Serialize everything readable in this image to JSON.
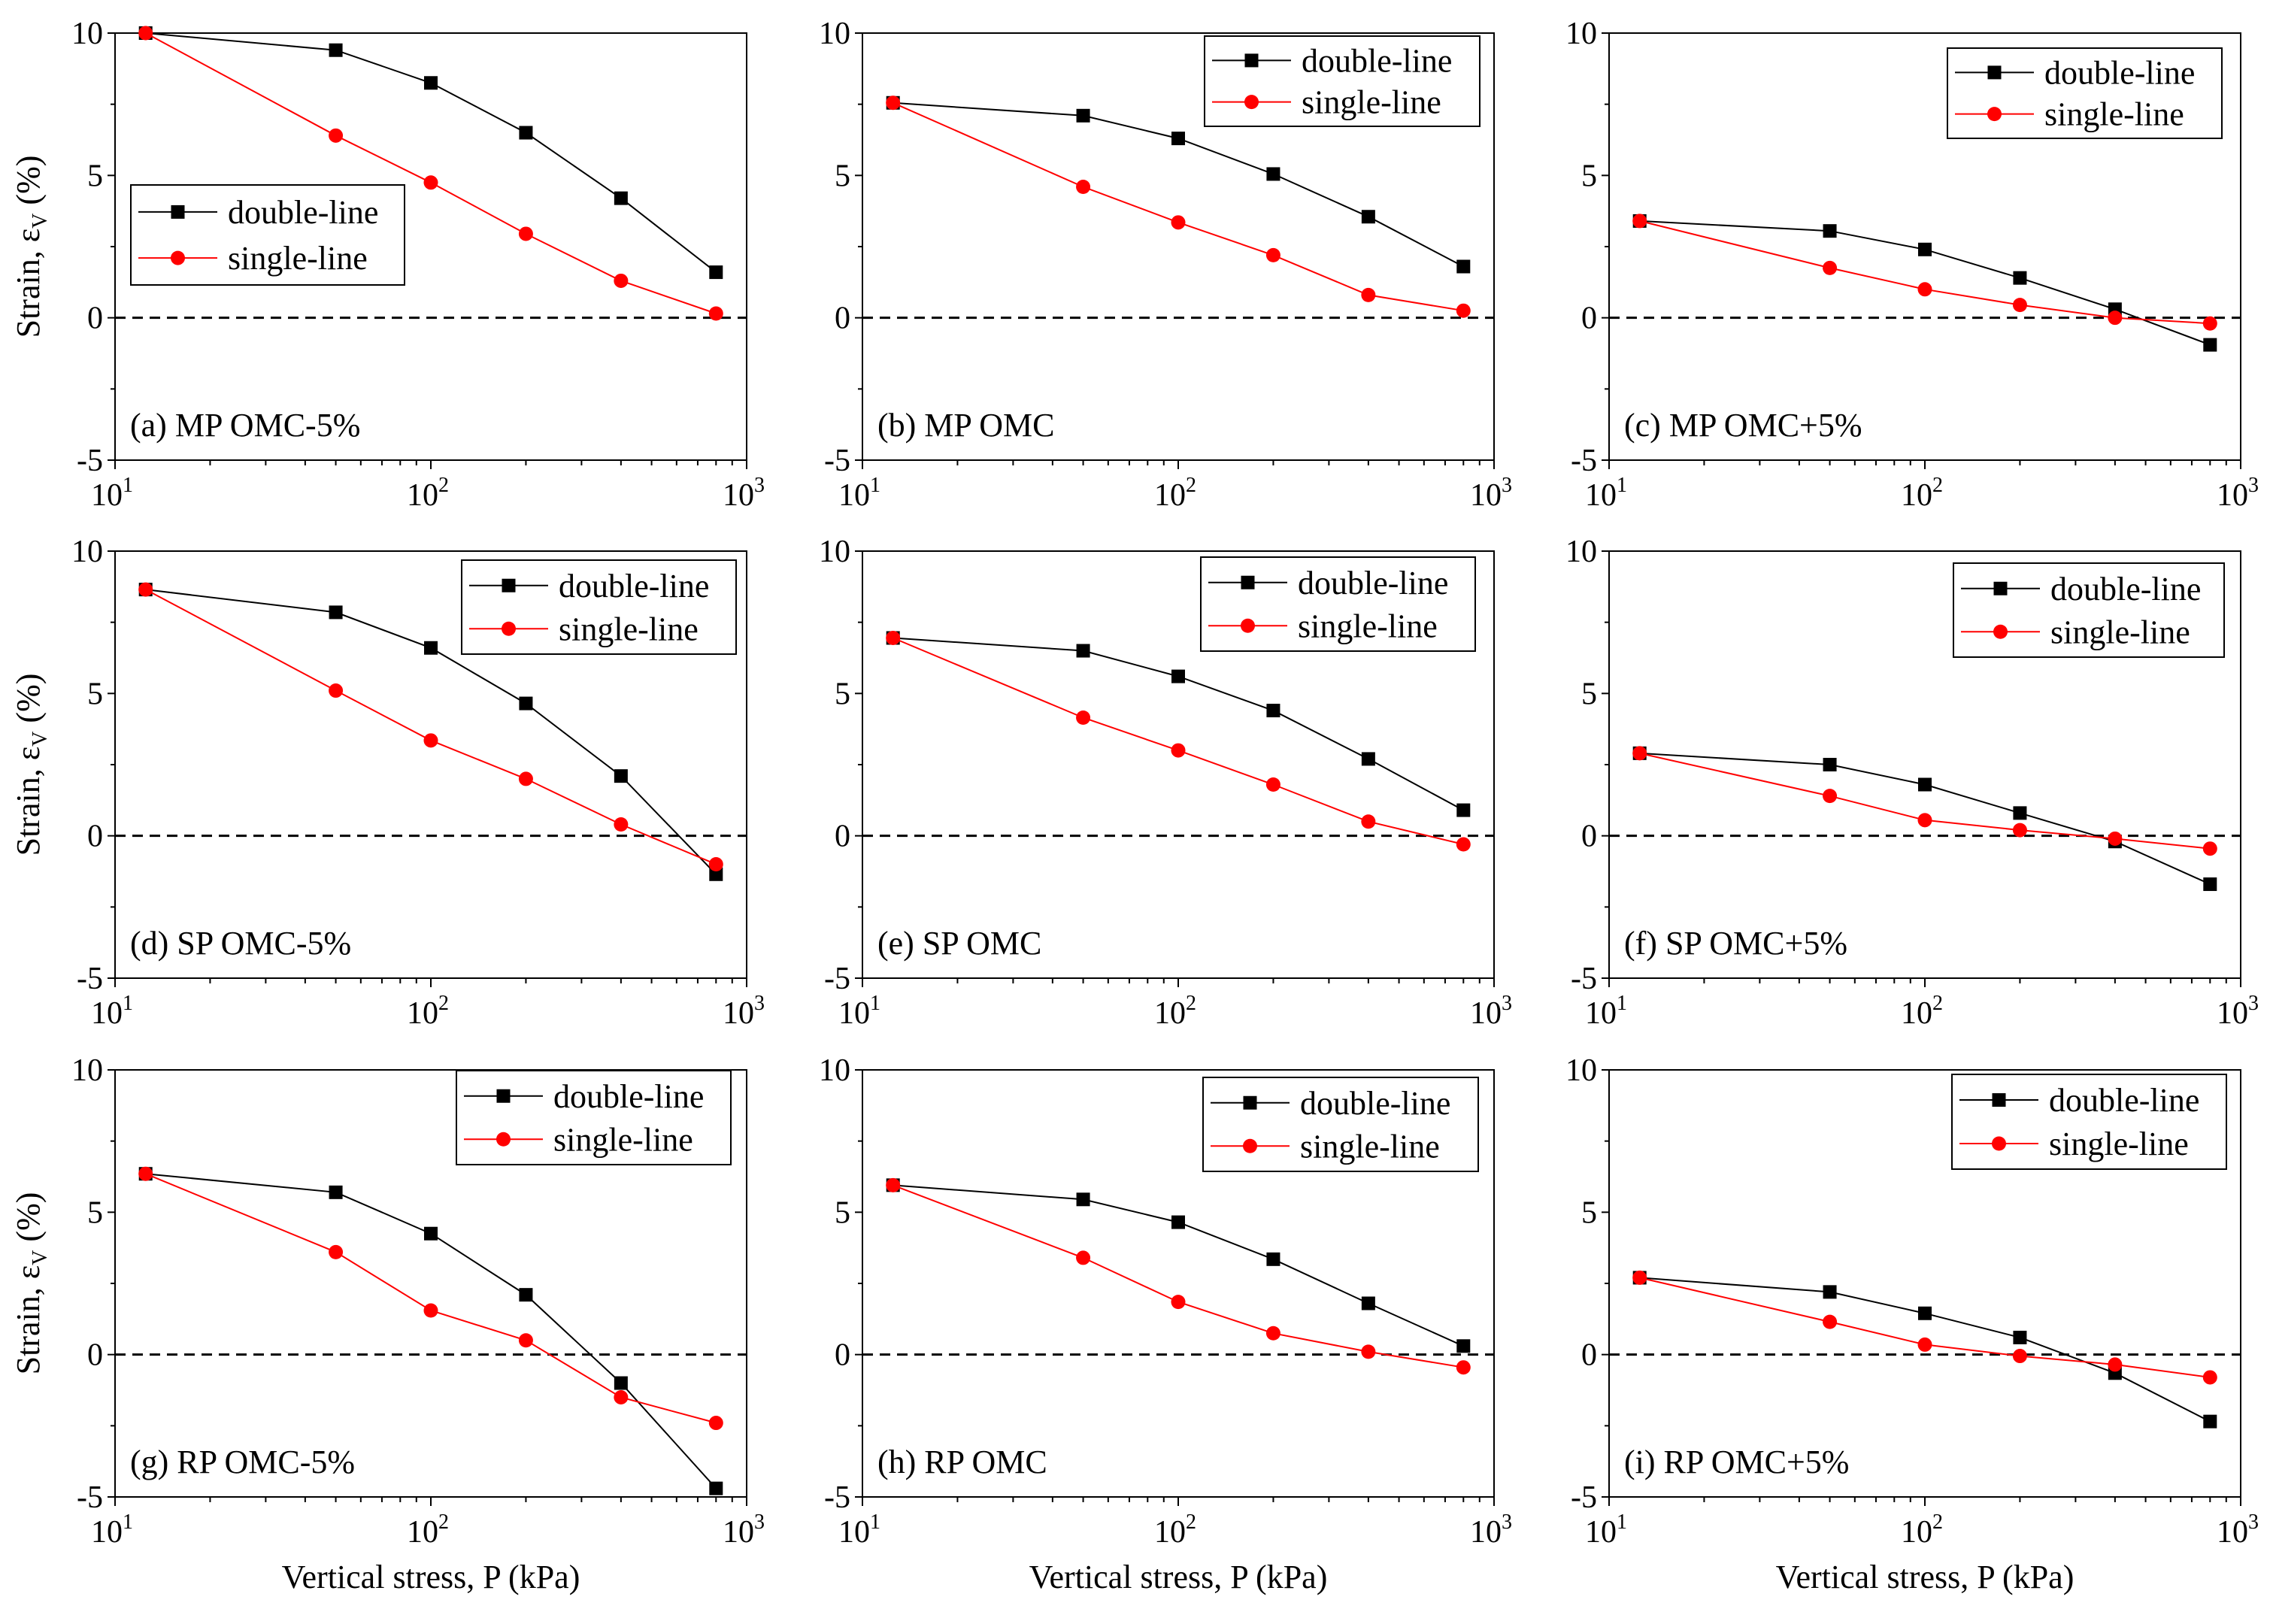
{
  "figure": {
    "xlabel": "Vertical stress, P (kPa)",
    "ylabel_main": "Strain, ε",
    "ylabel_sub": "V",
    "ylabel_suffix": " (%)",
    "x_tick_base": "10",
    "x_tick_exponents": [
      "1",
      "2",
      "3"
    ],
    "y_tick_labels": [
      "-5",
      "0",
      "5",
      "10"
    ],
    "colors": {
      "double": "#000000",
      "single": "#ff0000",
      "zero_line": "#000000"
    }
  },
  "legend": {
    "double_label": "double-line",
    "single_label": "single-line"
  },
  "chart_data": [
    {
      "type": "line",
      "label": "(a) MP OMC-5%",
      "xscale": "log",
      "xlim": [
        10,
        1000
      ],
      "ylim": [
        -5,
        10
      ],
      "x": [
        12.5,
        50,
        100,
        200,
        400,
        800
      ],
      "series": [
        {
          "name": "double-line",
          "values": [
            10.0,
            9.4,
            8.25,
            6.5,
            4.2,
            1.6
          ]
        },
        {
          "name": "single-line",
          "values": [
            10.0,
            6.4,
            4.75,
            2.95,
            1.3,
            0.15
          ]
        }
      ],
      "legend_position": "middle-left"
    },
    {
      "type": "line",
      "label": "(b) MP OMC",
      "xscale": "log",
      "xlim": [
        10,
        1000
      ],
      "ylim": [
        -5,
        10
      ],
      "x": [
        12.5,
        50,
        100,
        200,
        400,
        800
      ],
      "series": [
        {
          "name": "double-line",
          "values": [
            7.55,
            7.1,
            6.3,
            5.05,
            3.55,
            1.8
          ]
        },
        {
          "name": "single-line",
          "values": [
            7.55,
            4.6,
            3.35,
            2.2,
            0.8,
            0.25
          ]
        }
      ],
      "legend_position": "top-right"
    },
    {
      "type": "line",
      "label": "(c) MP OMC+5%",
      "xscale": "log",
      "xlim": [
        10,
        1000
      ],
      "ylim": [
        -5,
        10
      ],
      "x": [
        12.5,
        50,
        100,
        200,
        400,
        800
      ],
      "series": [
        {
          "name": "double-line",
          "values": [
            3.4,
            3.05,
            2.4,
            1.4,
            0.3,
            -0.95
          ]
        },
        {
          "name": "single-line",
          "values": [
            3.4,
            1.75,
            1.0,
            0.45,
            0.0,
            -0.2
          ]
        }
      ],
      "legend_position": "top-right"
    },
    {
      "type": "line",
      "label": "(d) SP OMC-5%",
      "xscale": "log",
      "xlim": [
        10,
        1000
      ],
      "ylim": [
        -5,
        10
      ],
      "x": [
        12.5,
        50,
        100,
        200,
        400,
        800
      ],
      "series": [
        {
          "name": "double-line",
          "values": [
            8.65,
            7.85,
            6.6,
            4.65,
            2.1,
            -1.35
          ]
        },
        {
          "name": "single-line",
          "values": [
            8.65,
            5.1,
            3.35,
            2.0,
            0.4,
            -1.0
          ]
        }
      ],
      "legend_position": "top-right"
    },
    {
      "type": "line",
      "label": "(e) SP OMC",
      "xscale": "log",
      "xlim": [
        10,
        1000
      ],
      "ylim": [
        -5,
        10
      ],
      "x": [
        12.5,
        50,
        100,
        200,
        400,
        800
      ],
      "series": [
        {
          "name": "double-line",
          "values": [
            6.95,
            6.5,
            5.6,
            4.4,
            2.7,
            0.9
          ]
        },
        {
          "name": "single-line",
          "values": [
            6.95,
            4.15,
            3.0,
            1.8,
            0.5,
            -0.3
          ]
        }
      ],
      "legend_position": "top-right"
    },
    {
      "type": "line",
      "label": "(f) SP OMC+5%",
      "xscale": "log",
      "xlim": [
        10,
        1000
      ],
      "ylim": [
        -5,
        10
      ],
      "x": [
        12.5,
        50,
        100,
        200,
        400,
        800
      ],
      "series": [
        {
          "name": "double-line",
          "values": [
            2.9,
            2.5,
            1.8,
            0.8,
            -0.2,
            -1.7
          ]
        },
        {
          "name": "single-line",
          "values": [
            2.9,
            1.4,
            0.55,
            0.2,
            -0.1,
            -0.45
          ]
        }
      ],
      "legend_position": "top-right"
    },
    {
      "type": "line",
      "label": "(g) RP OMC-5%",
      "xscale": "log",
      "xlim": [
        10,
        1000
      ],
      "ylim": [
        -5,
        10
      ],
      "x": [
        12.5,
        50,
        100,
        200,
        400,
        800
      ],
      "series": [
        {
          "name": "double-line",
          "values": [
            6.35,
            5.7,
            4.25,
            2.1,
            -1.0,
            -4.7
          ]
        },
        {
          "name": "single-line",
          "values": [
            6.35,
            3.6,
            1.55,
            0.5,
            -1.5,
            -2.4
          ]
        }
      ],
      "legend_position": "top-right"
    },
    {
      "type": "line",
      "label": "(h) RP OMC",
      "xscale": "log",
      "xlim": [
        10,
        1000
      ],
      "ylim": [
        -5,
        10
      ],
      "x": [
        12.5,
        50,
        100,
        200,
        400,
        800
      ],
      "series": [
        {
          "name": "double-line",
          "values": [
            5.95,
            5.45,
            4.65,
            3.35,
            1.8,
            0.3
          ]
        },
        {
          "name": "single-line",
          "values": [
            5.95,
            3.4,
            1.85,
            0.75,
            0.1,
            -0.45
          ]
        }
      ],
      "legend_position": "top-right"
    },
    {
      "type": "line",
      "label": "(i) RP OMC+5%",
      "xscale": "log",
      "xlim": [
        10,
        1000
      ],
      "ylim": [
        -5,
        10
      ],
      "x": [
        12.5,
        50,
        100,
        200,
        400,
        800
      ],
      "series": [
        {
          "name": "double-line",
          "values": [
            2.7,
            2.2,
            1.45,
            0.6,
            -0.65,
            -2.35
          ]
        },
        {
          "name": "single-line",
          "values": [
            2.7,
            1.15,
            0.35,
            -0.05,
            -0.35,
            -0.8
          ]
        }
      ],
      "legend_position": "top-right"
    }
  ]
}
